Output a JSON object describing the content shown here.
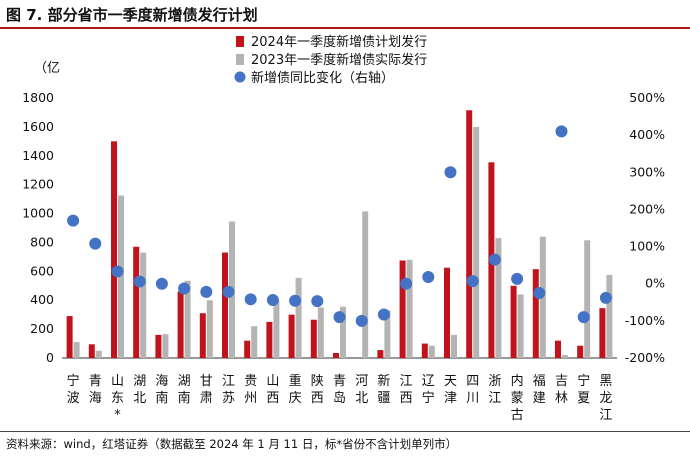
{
  "page": {
    "title": "图 7. 部分省市一季度新增债发行计划",
    "source": "资料来源：wind，红塔证券（数据截至 2024 年 1 月 11 日，标*省份不含计划单列市）"
  },
  "colors": {
    "plan": "#c0131b",
    "actual": "#b4b4b4",
    "yoy": "#4472c4",
    "title_rule": "#b0161e"
  },
  "chart_data": {
    "type": "bar",
    "title": "",
    "ylabel_left": "（亿",
    "ylim_left": [
      0,
      1800
    ],
    "yticks_left": [
      "0",
      "200",
      "400",
      "600",
      "800",
      "1000",
      "1200",
      "1400",
      "1600",
      "1800"
    ],
    "ylim_right": [
      -200,
      500
    ],
    "yticks_right": [
      "-200%",
      "-100%",
      "0%",
      "100%",
      "200%",
      "300%",
      "400%",
      "500%"
    ],
    "legend_placement": "top-center",
    "categories": [
      "宁波",
      "青海",
      "山东*",
      "湖北",
      "海南",
      "湖南",
      "甘肃",
      "江苏",
      "贵州",
      "山西",
      "重庆",
      "陕西",
      "青岛",
      "河北",
      "新疆",
      "江西",
      "辽宁",
      "天津",
      "四川",
      "浙江",
      "内蒙古",
      "福建",
      "吉林",
      "宁夏",
      "黑龙江"
    ],
    "series": [
      {
        "name": "2024年一季度新增债计划发行",
        "axis": "left",
        "kind": "bar",
        "values": [
          290,
          95,
          1500,
          770,
          160,
          460,
          310,
          730,
          120,
          250,
          300,
          265,
          35,
          0,
          55,
          675,
          100,
          625,
          1715,
          1355,
          500,
          615,
          120,
          85,
          345
        ]
      },
      {
        "name": "2023年一季度新增债实际发行",
        "axis": "left",
        "kind": "bar",
        "values": [
          110,
          50,
          1125,
          730,
          165,
          535,
          400,
          945,
          220,
          400,
          555,
          350,
          355,
          1015,
          330,
          680,
          85,
          160,
          1600,
          830,
          440,
          840,
          20,
          815,
          575
        ]
      },
      {
        "name": "新增债同比变化（右轴）",
        "axis": "right",
        "kind": "scatter",
        "values": [
          170,
          108,
          33,
          6,
          0,
          -13,
          -22,
          -22,
          -42,
          -44,
          -46,
          -47,
          -90,
          -100,
          -83,
          0,
          18,
          300,
          7,
          65,
          13,
          -25,
          410,
          -90,
          -38
        ]
      }
    ]
  }
}
